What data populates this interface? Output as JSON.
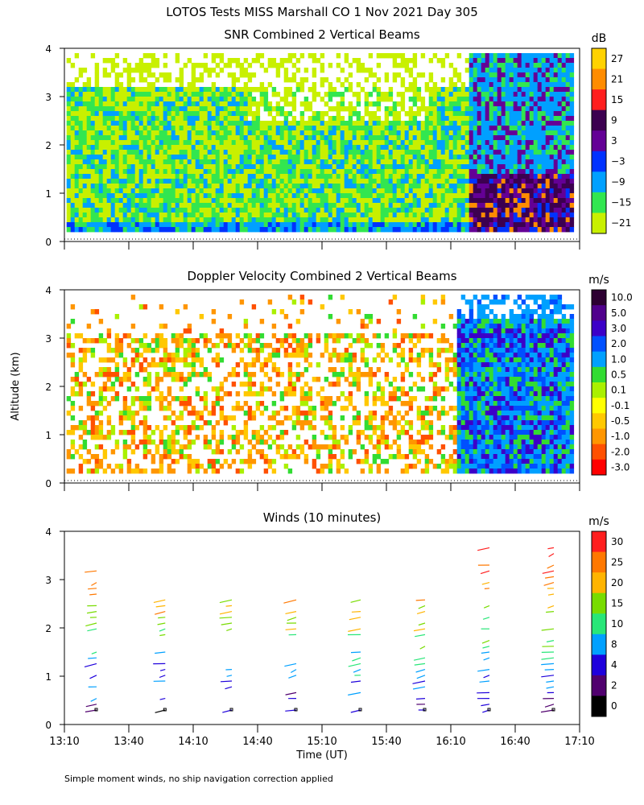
{
  "page_title": "LOTOS Tests MISS Marshall CO    1 Nov 2021 Day 305",
  "y_axis_label": "Altitude (km)",
  "x_axis_label": "Time (UT)",
  "footnote": "Simple moment winds, no ship navigation correction applied",
  "colors": {
    "magenta": "#d600d6",
    "white": "#ffffff",
    "axis": "#000000"
  },
  "chart_data": [
    {
      "type": "heatmap",
      "title": "SNR Combined 2 Vertical Beams",
      "units": "dB",
      "x_range": [
        790,
        1030
      ],
      "ylim": [
        0,
        4
      ],
      "x_ticks": [
        790,
        820,
        850,
        880,
        910,
        940,
        970,
        1000,
        1030
      ],
      "y_ticks": [
        0,
        1,
        2,
        3,
        4
      ],
      "colorbar": {
        "labels": [
          "27",
          "21",
          "15",
          "9",
          "3",
          "−3",
          "−9",
          "−15",
          "−21"
        ],
        "colors": [
          "#ffd200",
          "#ff8c00",
          "#ff1e1e",
          "#3c0050",
          "#640096",
          "#0032ff",
          "#00a0ff",
          "#32e650",
          "#c8f000"
        ]
      },
      "data_extent": {
        "x": [
          791,
          1027
        ],
        "y": [
          0.2,
          3.9
        ]
      }
    },
    {
      "type": "heatmap",
      "title": "Doppler Velocity Combined 2 Vertical Beams",
      "units": "m/s",
      "x_range": [
        790,
        1030
      ],
      "ylim": [
        0,
        4
      ],
      "x_ticks": [
        790,
        820,
        850,
        880,
        910,
        940,
        970,
        1000,
        1030
      ],
      "y_ticks": [
        0,
        1,
        2,
        3,
        4
      ],
      "colorbar": {
        "labels": [
          "10.0",
          "5.0",
          "3.0",
          "2.0",
          "1.0",
          "0.5",
          "0.1",
          "-0.1",
          "-0.5",
          "-1.0",
          "-2.0",
          "-3.0"
        ],
        "colors": [
          "#2d0032",
          "#50008c",
          "#3c00c8",
          "#0050ff",
          "#00a0ff",
          "#32dc32",
          "#aaf000",
          "#ffff00",
          "#ffc800",
          "#ff9600",
          "#ff5000",
          "#ff0000"
        ]
      },
      "data_extent": {
        "x": [
          791,
          1027
        ],
        "y": [
          0.2,
          3.9
        ]
      }
    },
    {
      "type": "scatter",
      "title": "Winds (10 minutes)",
      "units": "m/s",
      "x_range": [
        790,
        1030
      ],
      "ylim": [
        0,
        4
      ],
      "x_ticks": [
        790,
        820,
        850,
        880,
        910,
        940,
        970,
        1000,
        1030
      ],
      "x_tick_labels": [
        "13:10",
        "13:40",
        "14:10",
        "14:40",
        "15:10",
        "15:40",
        "16:10",
        "16:40",
        "17:10"
      ],
      "y_ticks": [
        0,
        1,
        2,
        3,
        4
      ],
      "colorbar": {
        "labels": [
          "30",
          "25",
          "20",
          "15",
          "10",
          "8",
          "4",
          "2",
          "0"
        ],
        "colors": [
          "#ff1e1e",
          "#ff7800",
          "#ffb400",
          "#78dc00",
          "#28e678",
          "#00a0ff",
          "#1e00dc",
          "#50006e",
          "#000000"
        ]
      },
      "profile_times": [
        805,
        837,
        868,
        898,
        928,
        958,
        988,
        1018
      ]
    }
  ]
}
